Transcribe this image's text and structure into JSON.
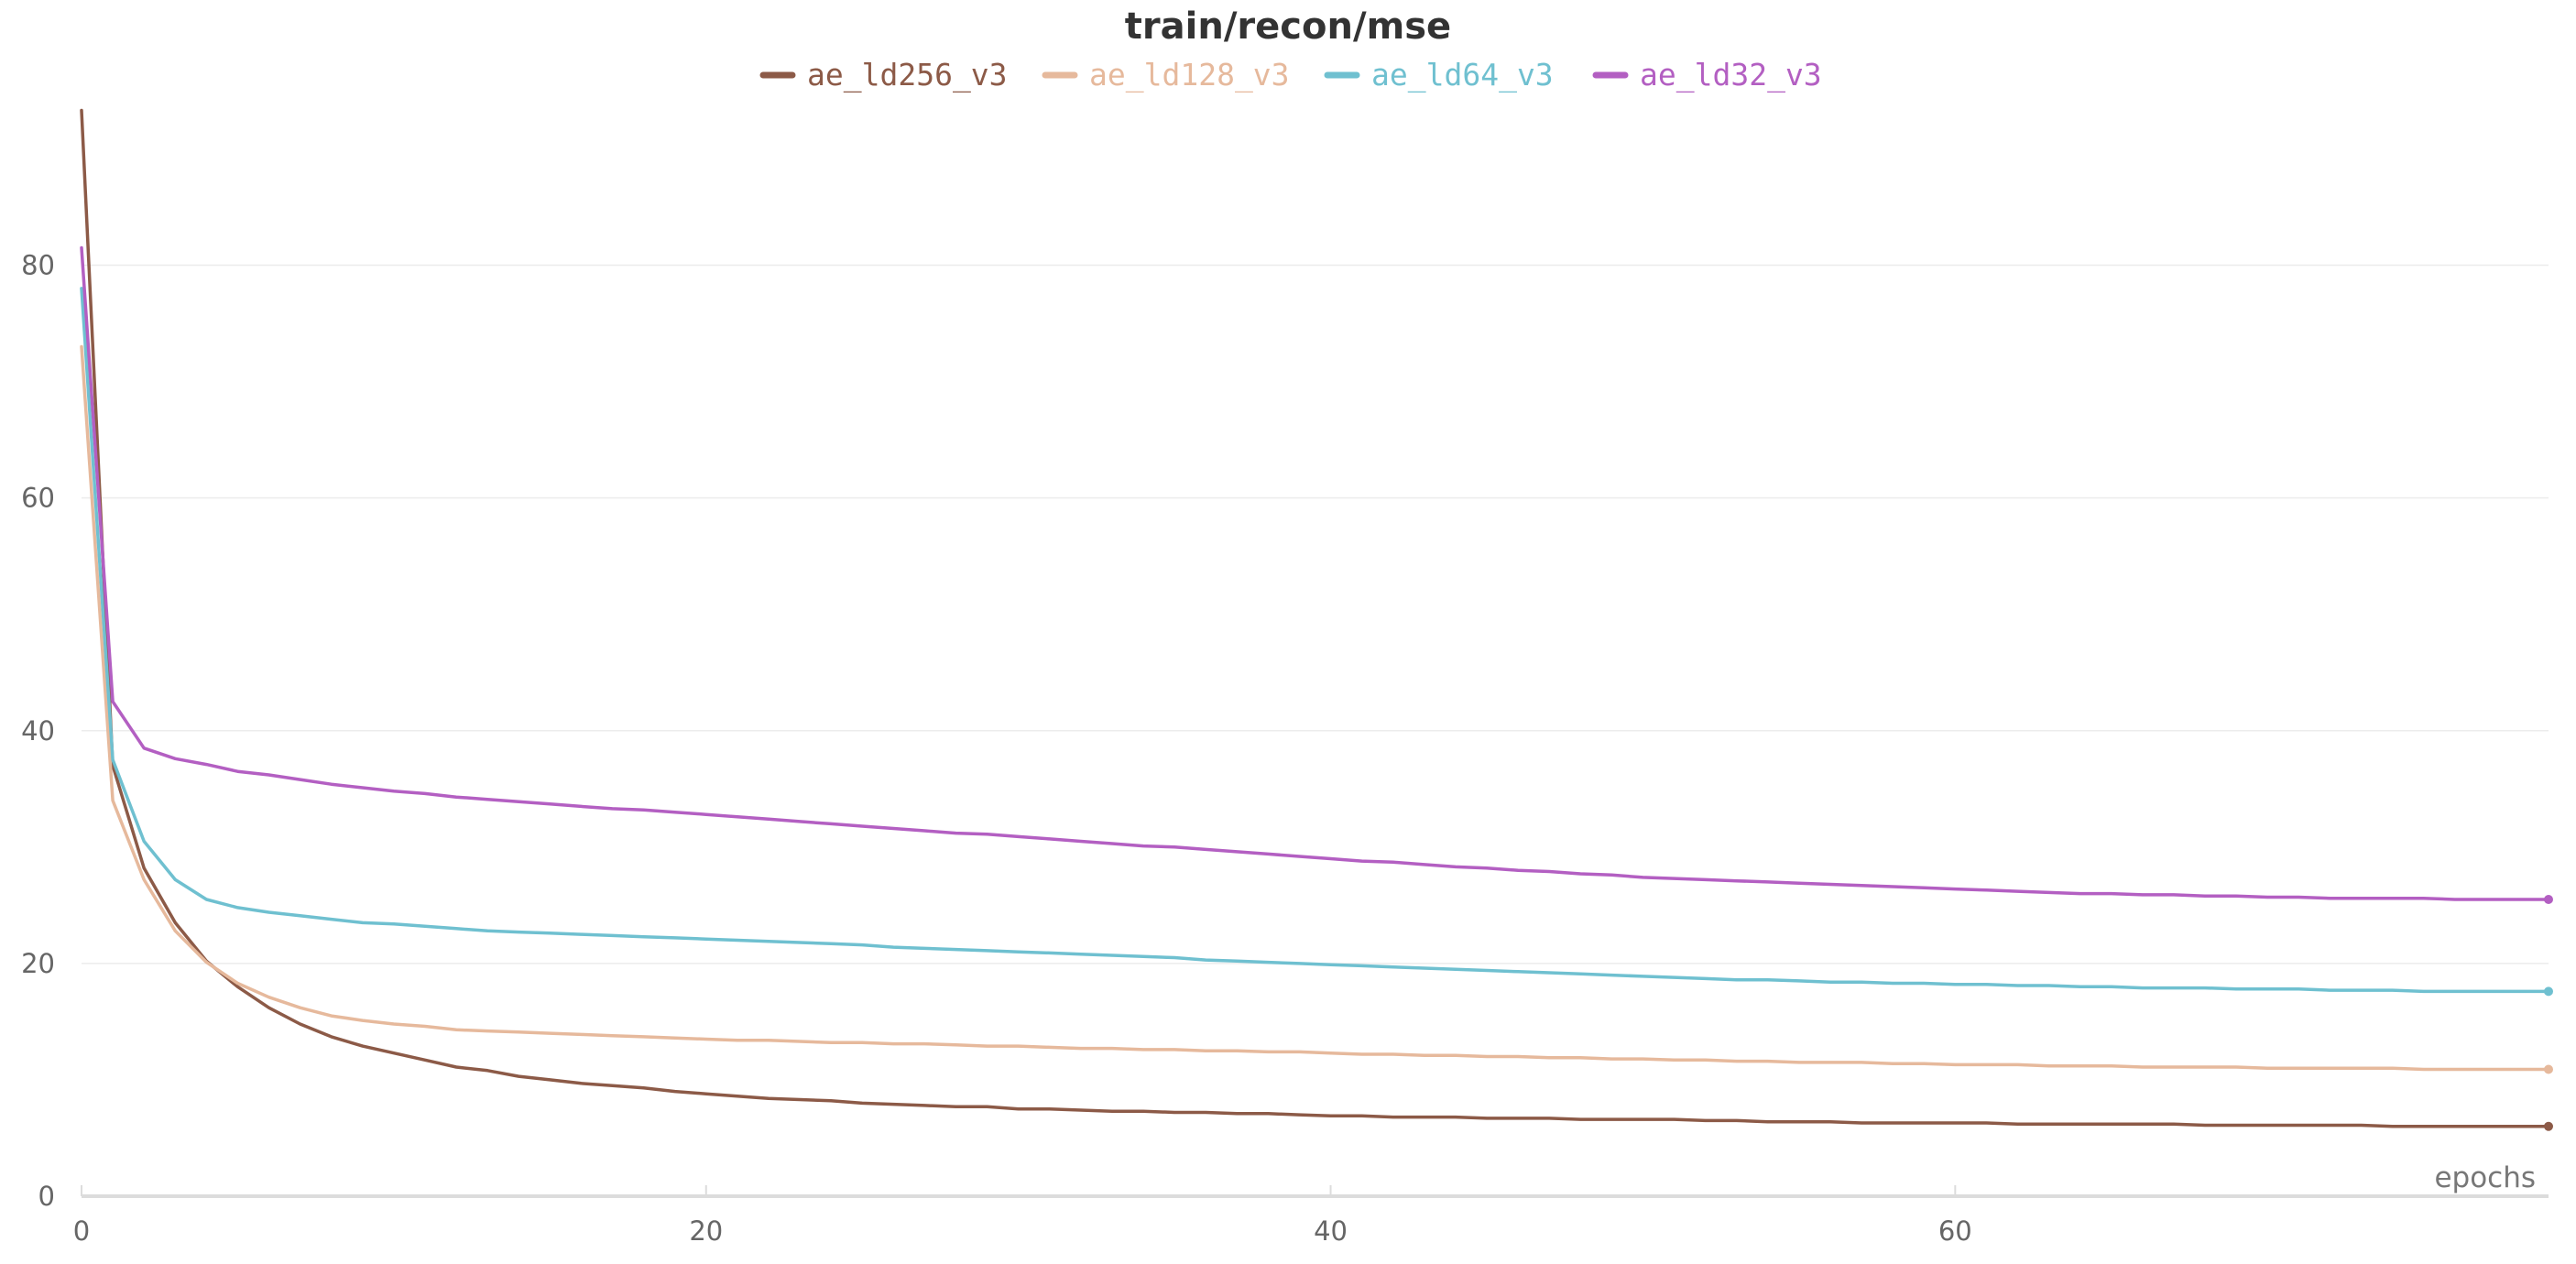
{
  "chart_data": {
    "type": "line",
    "title": "train/recon/mse",
    "xlabel": "epochs",
    "ylabel": "",
    "xlim": [
      0,
      79
    ],
    "ylim": [
      0,
      93.5
    ],
    "x_ticks": [
      0,
      20,
      40,
      60
    ],
    "y_ticks": [
      0,
      20,
      40,
      60,
      80
    ],
    "grid": true,
    "legend": "top-center",
    "x": [
      0,
      1,
      2,
      3,
      4,
      5,
      6,
      7,
      8,
      9,
      10,
      11,
      12,
      13,
      14,
      15,
      16,
      17,
      18,
      19,
      20,
      21,
      22,
      23,
      24,
      25,
      26,
      27,
      28,
      29,
      30,
      31,
      32,
      33,
      34,
      35,
      36,
      37,
      38,
      39,
      40,
      41,
      42,
      43,
      44,
      45,
      46,
      47,
      48,
      49,
      50,
      51,
      52,
      53,
      54,
      55,
      56,
      57,
      58,
      59,
      60,
      61,
      62,
      63,
      64,
      65,
      66,
      67,
      68,
      69,
      70,
      71,
      72,
      73,
      74,
      75,
      76,
      77,
      78,
      79
    ],
    "series": [
      {
        "name": "ae_ld256_v3",
        "color": "#8c5a47",
        "values": [
          93.3,
          37.0,
          28.2,
          23.5,
          20.2,
          18.0,
          16.2,
          14.8,
          13.7,
          12.9,
          12.3,
          11.7,
          11.1,
          10.8,
          10.3,
          10.0,
          9.7,
          9.5,
          9.3,
          9.0,
          8.8,
          8.6,
          8.4,
          8.3,
          8.2,
          8.0,
          7.9,
          7.8,
          7.7,
          7.7,
          7.5,
          7.5,
          7.4,
          7.3,
          7.3,
          7.2,
          7.2,
          7.1,
          7.1,
          7.0,
          6.9,
          6.9,
          6.8,
          6.8,
          6.8,
          6.7,
          6.7,
          6.7,
          6.6,
          6.6,
          6.6,
          6.6,
          6.5,
          6.5,
          6.4,
          6.4,
          6.4,
          6.3,
          6.3,
          6.3,
          6.3,
          6.3,
          6.2,
          6.2,
          6.2,
          6.2,
          6.2,
          6.2,
          6.1,
          6.1,
          6.1,
          6.1,
          6.1,
          6.1,
          6.0,
          6.0,
          6.0,
          6.0,
          6.0,
          6.0
        ]
      },
      {
        "name": "ae_ld128_v3",
        "color": "#e6b99c",
        "values": [
          73.0,
          34.0,
          27.2,
          22.8,
          20.1,
          18.3,
          17.1,
          16.2,
          15.5,
          15.1,
          14.8,
          14.6,
          14.3,
          14.2,
          14.1,
          14.0,
          13.9,
          13.8,
          13.7,
          13.6,
          13.5,
          13.4,
          13.4,
          13.3,
          13.2,
          13.2,
          13.1,
          13.1,
          13.0,
          12.9,
          12.9,
          12.8,
          12.7,
          12.7,
          12.6,
          12.6,
          12.5,
          12.5,
          12.4,
          12.4,
          12.3,
          12.2,
          12.2,
          12.1,
          12.1,
          12.0,
          12.0,
          11.9,
          11.9,
          11.8,
          11.8,
          11.7,
          11.7,
          11.6,
          11.6,
          11.5,
          11.5,
          11.5,
          11.4,
          11.4,
          11.3,
          11.3,
          11.3,
          11.2,
          11.2,
          11.2,
          11.1,
          11.1,
          11.1,
          11.1,
          11.0,
          11.0,
          11.0,
          11.0,
          11.0,
          10.9,
          10.9,
          10.9,
          10.9,
          10.9
        ]
      },
      {
        "name": "ae_ld64_v3",
        "color": "#6fc0d0",
        "values": [
          78.0,
          37.5,
          30.5,
          27.2,
          25.5,
          24.8,
          24.4,
          24.1,
          23.8,
          23.5,
          23.4,
          23.2,
          23.0,
          22.8,
          22.7,
          22.6,
          22.5,
          22.4,
          22.3,
          22.2,
          22.1,
          22.0,
          21.9,
          21.8,
          21.7,
          21.6,
          21.4,
          21.3,
          21.2,
          21.1,
          21.0,
          20.9,
          20.8,
          20.7,
          20.6,
          20.5,
          20.3,
          20.2,
          20.1,
          20.0,
          19.9,
          19.8,
          19.7,
          19.6,
          19.5,
          19.4,
          19.3,
          19.2,
          19.1,
          19.0,
          18.9,
          18.8,
          18.7,
          18.6,
          18.6,
          18.5,
          18.4,
          18.4,
          18.3,
          18.3,
          18.2,
          18.2,
          18.1,
          18.1,
          18.0,
          18.0,
          17.9,
          17.9,
          17.9,
          17.8,
          17.8,
          17.8,
          17.7,
          17.7,
          17.7,
          17.6,
          17.6,
          17.6,
          17.6,
          17.6
        ]
      },
      {
        "name": "ae_ld32_v3",
        "color": "#b35fc2",
        "values": [
          81.5,
          42.5,
          38.5,
          37.6,
          37.1,
          36.5,
          36.2,
          35.8,
          35.4,
          35.1,
          34.8,
          34.6,
          34.3,
          34.1,
          33.9,
          33.7,
          33.5,
          33.3,
          33.2,
          33.0,
          32.8,
          32.6,
          32.4,
          32.2,
          32.0,
          31.8,
          31.6,
          31.4,
          31.2,
          31.1,
          30.9,
          30.7,
          30.5,
          30.3,
          30.1,
          30.0,
          29.8,
          29.6,
          29.4,
          29.2,
          29.0,
          28.8,
          28.7,
          28.5,
          28.3,
          28.2,
          28.0,
          27.9,
          27.7,
          27.6,
          27.4,
          27.3,
          27.2,
          27.1,
          27.0,
          26.9,
          26.8,
          26.7,
          26.6,
          26.5,
          26.4,
          26.3,
          26.2,
          26.1,
          26.0,
          26.0,
          25.9,
          25.9,
          25.8,
          25.8,
          25.7,
          25.7,
          25.6,
          25.6,
          25.6,
          25.6,
          25.5,
          25.5,
          25.5,
          25.5
        ]
      }
    ]
  }
}
